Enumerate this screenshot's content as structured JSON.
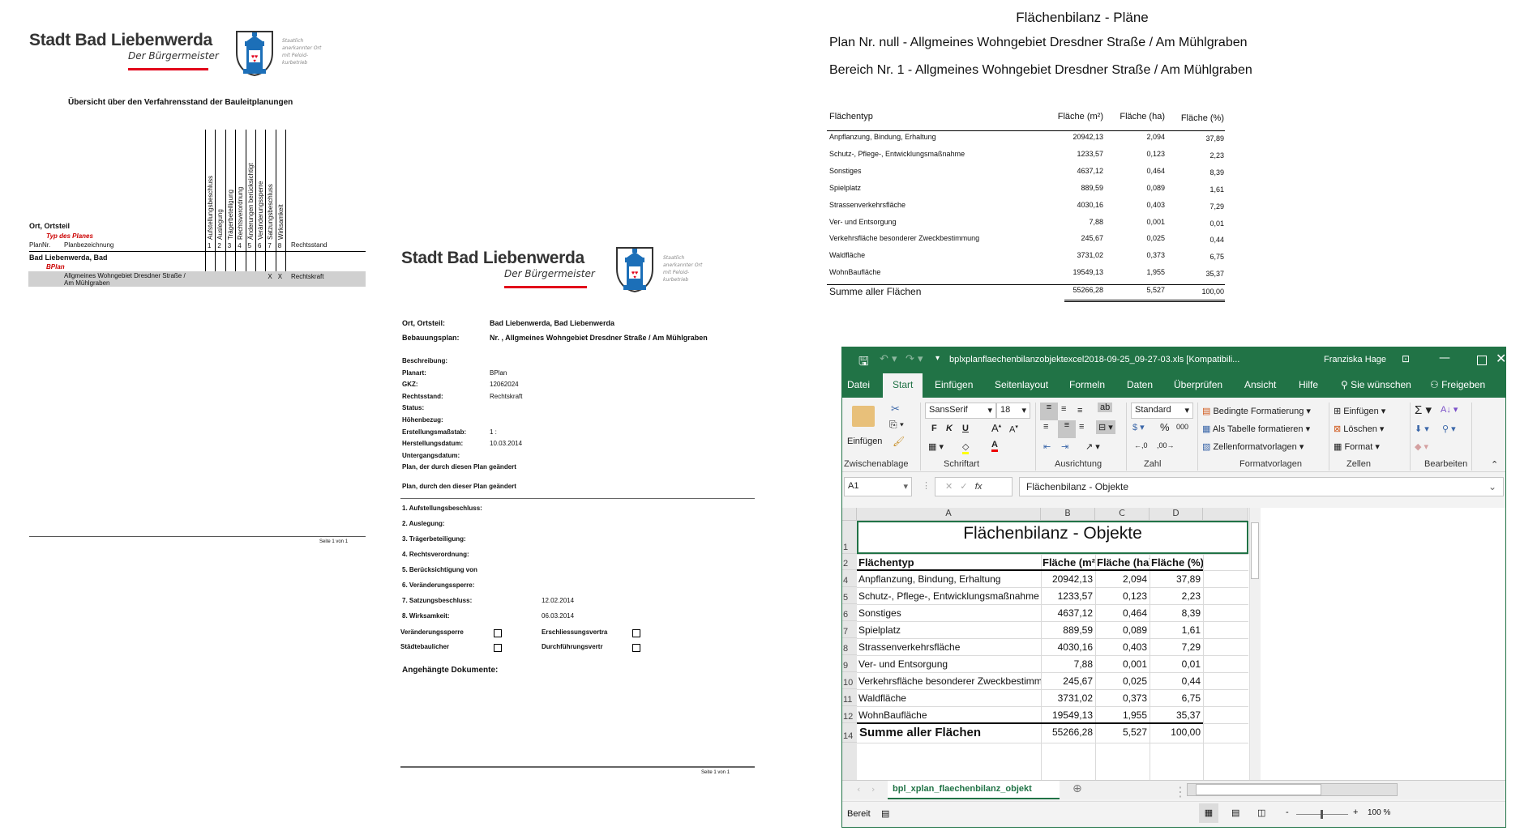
{
  "logo": {
    "city": "Stadt Bad Liebenwerda",
    "subtitle": "Der Bürgermeister",
    "crest_note": "Staatlich anerkannter Ort mit Peloid-kurbetrieb",
    "accent": "#e2001a",
    "crest_blue": "#1c6fb8"
  },
  "overview": {
    "title": "Übersicht über den Verfahrensstand der Bauleitplanungen",
    "steps": [
      "Aufstellungsbeschluss",
      "Auslegung",
      "Trägerbeteiligung",
      "Rechtsverordnung",
      "Änderungen berücksichtigt",
      "Veränderungssperre",
      "Satzungsbeschluss",
      "Wirksamkeit"
    ],
    "step_numbers": [
      "1",
      "2",
      "3",
      "4",
      "5",
      "6",
      "7",
      "8"
    ],
    "h_ort": "Ort, Ortsteil",
    "h_typ": "Typ des Planes",
    "h_plannr": "PlanNr.",
    "h_planbez": "Planbezeichnung",
    "h_rechtsstand": "Rechtsstand",
    "group": "Bad Liebenwerda, Bad",
    "type": "BPlan",
    "plan_name_1": "Allgmeines Wohngebiet Dresdner Straße /",
    "plan_name_2": "Am Mühlgraben",
    "marks": [
      "",
      "",
      "",
      "",
      "",
      "",
      "X",
      "X"
    ],
    "status": "Rechtskraft",
    "footer": "Seite 1 von 1"
  },
  "detail": {
    "ort_label": "Ort, Ortsteil:",
    "ort_value": "Bad Liebenwerda, Bad Liebenwerda",
    "bplan_label": "Bebauungsplan:",
    "bplan_value": "Nr. , Allgmeines Wohngebiet Dresdner Straße / Am Mühlgraben",
    "fields": [
      {
        "label": "Beschreibung:",
        "value": ""
      },
      {
        "label": "Planart:",
        "value": "BPlan"
      },
      {
        "label": "GKZ:",
        "value": "12062024"
      },
      {
        "label": "Rechtsstand:",
        "value": "Rechtskraft"
      },
      {
        "label": "Status:",
        "value": ""
      },
      {
        "label": "Höhenbezug:",
        "value": ""
      },
      {
        "label": "Erstellungsmaßstab:",
        "value": "1 :"
      },
      {
        "label": "Herstellungsdatum:",
        "value": "10.03.2014"
      },
      {
        "label": "Untergangsdatum:",
        "value": ""
      }
    ],
    "changed_by": "Plan, der durch diesen Plan geändert",
    "changes": "Plan, durch den dieser Plan geändert",
    "steps": [
      {
        "label": "1. Aufstellungsbeschluss:",
        "value": ""
      },
      {
        "label": "2. Auslegung:",
        "value": ""
      },
      {
        "label": "3. Trägerbeteiligung:",
        "value": ""
      },
      {
        "label": "4. Rechtsverordnung:",
        "value": ""
      },
      {
        "label": "5. Berücksichtigung von",
        "value": ""
      },
      {
        "label": "6. Veränderungssperre:",
        "value": ""
      },
      {
        "label": "7. Satzungsbeschluss:",
        "value": "12.02.2014"
      },
      {
        "label": "8. Wirksamkeit:",
        "value": "06.03.2014"
      }
    ],
    "checks": [
      {
        "label": "Veränderungssperre",
        "checked": false
      },
      {
        "label": "Erschliessungsvertra",
        "checked": false
      },
      {
        "label": "Städtebaulicher",
        "checked": false
      },
      {
        "label": "Durchführungsvertr",
        "checked": false
      }
    ],
    "attachments": "Angehängte Dokumente:",
    "footer": "Seite 1 von 1"
  },
  "bilanz": {
    "title": "Flächenbilanz - Pläne",
    "plan": "Plan Nr. null - Allgmeines Wohngebiet Dresdner Straße / Am Mühlgraben",
    "bereich": "Bereich Nr. 1 - Allgmeines Wohngebiet Dresdner Straße / Am Mühlgraben",
    "headers": [
      "Flächentyp",
      "Fläche (m²)",
      "Fläche (ha)",
      "Fläche (%)"
    ],
    "rows": [
      [
        "Anpflanzung, Bindung, Erhaltung",
        "20942,13",
        "2,094",
        "37,89"
      ],
      [
        "Schutz-, Pflege-, Entwicklungsmaßnahme",
        "1233,57",
        "0,123",
        "2,23"
      ],
      [
        "Sonstiges",
        "4637,12",
        "0,464",
        "8,39"
      ],
      [
        "Spielplatz",
        "889,59",
        "0,089",
        "1,61"
      ],
      [
        "Strassenverkehrsfläche",
        "4030,16",
        "0,403",
        "7,29"
      ],
      [
        "Ver- und Entsorgung",
        "7,88",
        "0,001",
        "0,01"
      ],
      [
        "Verkehrsfläche besonderer Zweckbestimmung",
        "245,67",
        "0,025",
        "0,44"
      ],
      [
        "Waldfläche",
        "3731,02",
        "0,373",
        "6,75"
      ],
      [
        "WohnBaufläche",
        "19549,13",
        "1,955",
        "35,37"
      ]
    ],
    "total": [
      "Summe aller Flächen",
      "55266,28",
      "5,527",
      "100,00"
    ]
  },
  "excel": {
    "brand_color": "#217346",
    "filename": "bplxplanflaechenbilanzobjektexcel2018-09-25_09-27-03.xls  [Kompatibili...",
    "user": "Franziska Hage",
    "tabs": [
      "Datei",
      "Start",
      "Einfügen",
      "Seitenlayout",
      "Formeln",
      "Daten",
      "Überprüfen",
      "Ansicht",
      "Hilfe"
    ],
    "active_tab": "Start",
    "tell_me": "Sie wünschen",
    "share": "Freigeben",
    "ribbon": {
      "paste": "Einfügen",
      "font": "SansSerif",
      "size": "18",
      "bold": "F",
      "italic": "K",
      "underline": "U",
      "number_format": "Standard",
      "bedingte": "Bedingte Formatierung",
      "als_tabelle": "Als Tabelle formatieren",
      "zellformat": "Zellenformatvorlagen",
      "einfuegen": "Einfügen",
      "loeschen": "Löschen",
      "format": "Format",
      "groups": [
        "Zwischenablage",
        "Schriftart",
        "Ausrichtung",
        "Zahl",
        "Formatvorlagen",
        "Zellen",
        "Bearbeiten"
      ]
    },
    "name_box": "A1",
    "formula": "Flächenbilanz - Objekte",
    "columns": [
      "A",
      "B",
      "C",
      "D"
    ],
    "sheet_title": "Flächenbilanz - Objekte",
    "row_numbers": [
      "1",
      "2",
      "4",
      "5",
      "6",
      "7",
      "8",
      "9",
      "10",
      "11",
      "12",
      "14"
    ],
    "sheet_tab": "bpl_xplan_flaechenbilanz_objekt",
    "status": "Bereit",
    "zoom": "100 %"
  }
}
